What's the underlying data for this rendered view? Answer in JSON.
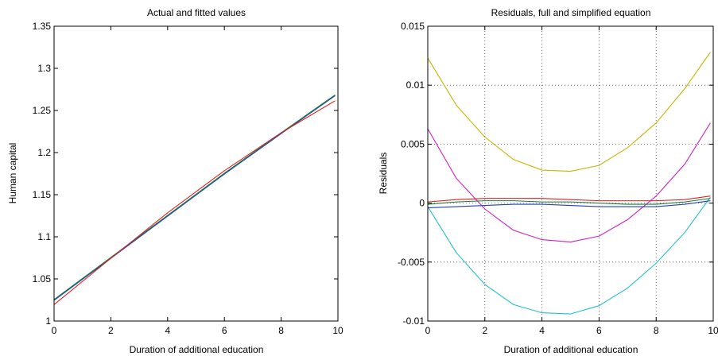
{
  "chart_data": [
    {
      "type": "line",
      "title": "Actual and fitted values",
      "xlabel": "Duration of additional education",
      "ylabel": "Human capital",
      "xlim": [
        0,
        10
      ],
      "ylim": [
        1,
        1.35
      ],
      "xticks": [
        "0",
        "2",
        "4",
        "6",
        "8",
        "10"
      ],
      "yticks": [
        "1",
        "1.05",
        "1.1",
        "1.15",
        "1.2",
        "1.25",
        "1.3",
        "1.35"
      ],
      "grid": false,
      "series": [
        {
          "color": "#1f3fbf",
          "x": [
            0,
            2,
            4,
            6,
            8,
            9.9
          ],
          "y": [
            1.0245,
            1.0745,
            1.1245,
            1.1745,
            1.2225,
            1.2675
          ]
        },
        {
          "color": "#1b7a3a",
          "x": [
            0,
            2,
            4,
            6,
            8,
            9.9
          ],
          "y": [
            1.0255,
            1.0755,
            1.1255,
            1.1755,
            1.2235,
            1.2685
          ]
        },
        {
          "color": "#e02020",
          "x": [
            0,
            2,
            4,
            6,
            8,
            9.9
          ],
          "y": [
            1.0195,
            1.0745,
            1.1285,
            1.1785,
            1.2235,
            1.2615
          ]
        }
      ]
    },
    {
      "type": "line",
      "title": "Residuals, full and simplified equation",
      "xlabel": "Duration of additional education",
      "ylabel": "Residuals",
      "xlim": [
        0,
        10
      ],
      "ylim": [
        -0.01,
        0.015
      ],
      "xticks": [
        "0",
        "2",
        "4",
        "6",
        "8",
        "10"
      ],
      "yticks": [
        "-0.01",
        "-0.005",
        "0",
        "0.005",
        "0.01",
        "0.015"
      ],
      "grid": true,
      "series": [
        {
          "color": "#c8b400",
          "x": [
            0,
            1,
            2,
            3,
            4,
            5,
            6,
            7,
            8,
            9,
            9.9
          ],
          "y": [
            0.0123,
            0.0083,
            0.0056,
            0.0037,
            0.0028,
            0.0027,
            0.0032,
            0.0047,
            0.0068,
            0.0097,
            0.0128
          ]
        },
        {
          "color": "#d020c0",
          "x": [
            0,
            1,
            2,
            3,
            4,
            5,
            6,
            7,
            8,
            9,
            9.9
          ],
          "y": [
            0.0063,
            0.0021,
            -0.0005,
            -0.0023,
            -0.0031,
            -0.0033,
            -0.0028,
            -0.0014,
            0.0006,
            0.0033,
            0.0068
          ]
        },
        {
          "color": "#20c0d0",
          "x": [
            0,
            1,
            2,
            3,
            4,
            5,
            6,
            7,
            8,
            9,
            9.9
          ],
          "y": [
            -0.0003,
            -0.0042,
            -0.0069,
            -0.0086,
            -0.0093,
            -0.0094,
            -0.0087,
            -0.0072,
            -0.0051,
            -0.0025,
            0.0005
          ]
        },
        {
          "color": "#e02020",
          "x": [
            0,
            1,
            2,
            3,
            4,
            5,
            6,
            7,
            8,
            9,
            9.9
          ],
          "y": [
            0.0001,
            0.0003,
            0.0004,
            0.0004,
            0.0004,
            0.0003,
            0.0002,
            0.0002,
            0.0002,
            0.0003,
            0.0006
          ]
        },
        {
          "color": "#1b7a3a",
          "x": [
            0,
            1,
            2,
            3,
            4,
            5,
            6,
            7,
            8,
            9,
            9.9
          ],
          "y": [
            -0.0001,
            0.0001,
            0.0002,
            0.0002,
            0.0001,
            0.0001,
            0.0,
            -0.0001,
            -0.0001,
            0.0001,
            0.0004
          ]
        },
        {
          "color": "#1f3fbf",
          "x": [
            0,
            1,
            2,
            3,
            4,
            5,
            6,
            7,
            8,
            9,
            9.9
          ],
          "y": [
            -0.0004,
            -0.0003,
            -0.0002,
            -0.0001,
            -0.0001,
            -0.0002,
            -0.0003,
            -0.0003,
            -0.0003,
            -0.0001,
            0.0002
          ]
        }
      ]
    }
  ]
}
